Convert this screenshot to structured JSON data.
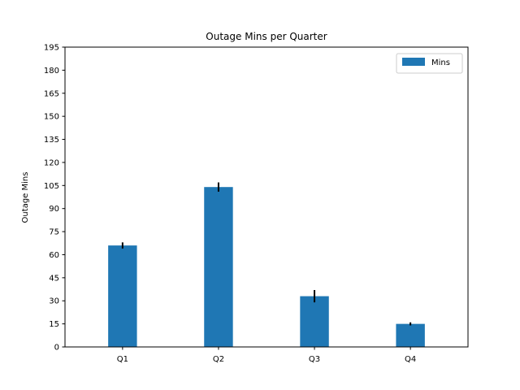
{
  "chart_data": {
    "type": "bar",
    "title": "Outage Mins per Quarter",
    "xlabel": "",
    "ylabel": "Outage Mins",
    "categories": [
      "Q1",
      "Q2",
      "Q3",
      "Q4"
    ],
    "series": [
      {
        "name": "Mins",
        "values": [
          66,
          104,
          33,
          15
        ],
        "errors": [
          2,
          3,
          4,
          1
        ],
        "color": "#1f77b4"
      }
    ],
    "ylim": [
      0,
      195
    ],
    "yticks": [
      0,
      15,
      30,
      45,
      60,
      75,
      90,
      105,
      120,
      135,
      150,
      165,
      180,
      195
    ],
    "grid": false,
    "legend_position": "top-right",
    "error_bar_color": "#000000"
  }
}
